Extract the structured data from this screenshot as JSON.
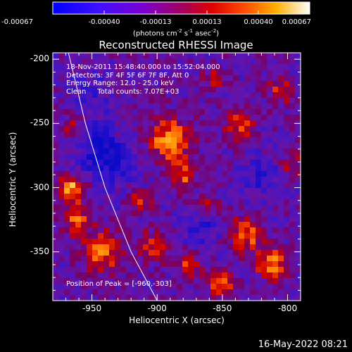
{
  "colorbar": {
    "ticks": [
      "-0.00067",
      "-0.00040",
      "-0.00013",
      "0.00013",
      "0.00040",
      "0.00067"
    ],
    "unit_text": "(photons cm",
    "unit_exp1": "-2",
    "unit_mid": " s",
    "unit_exp2": "-1",
    "unit_mid2": " asec",
    "unit_exp3": "-2",
    "unit_end": ")"
  },
  "chart_data": {
    "type": "heatmap",
    "title": "Reconstructed RHESSI Image",
    "xlabel": "Heliocentric X (arcsec)",
    "ylabel": "Heliocentric Y (arcsec)",
    "xlim": [
      -980,
      -790
    ],
    "ylim": [
      -388,
      -195
    ],
    "xticks": [
      -950,
      -900,
      -850,
      -800
    ],
    "yticks": [
      -200,
      -250,
      -300,
      -350
    ],
    "xtick_labels": [
      "-950",
      "-900",
      "-850",
      "-800"
    ],
    "ytick_labels": [
      "-200",
      "-250",
      "-300",
      "-350"
    ],
    "value_range": [
      -0.00067,
      0.00067
    ],
    "colormap": [
      "#0000ff",
      "#5a00ff",
      "#8a00b0",
      "#c00000",
      "#ff4000",
      "#ffa000",
      "#ffe060",
      "#ffffff"
    ],
    "peak_position": [
      -960,
      -303
    ],
    "limb_curve": [
      [
        -968,
        -195
      ],
      [
        -955,
        -250
      ],
      [
        -940,
        -300
      ],
      [
        -920,
        -350
      ],
      [
        -900,
        -388
      ]
    ]
  },
  "info": {
    "line1": "18-Nov-2011 15:48:40.000 to 15:52:04.000",
    "line2": "Detectors: 3F 4F 5F 6F 7F 8F, Att 0",
    "line3": "Energy Range: 12.0 - 25.0 keV",
    "line4": "Clean     Total counts: 7.07E+03"
  },
  "peak_label": "Position of Peak = [-960,-303]",
  "footer": {
    "date": "16-May-2022 08:21"
  }
}
